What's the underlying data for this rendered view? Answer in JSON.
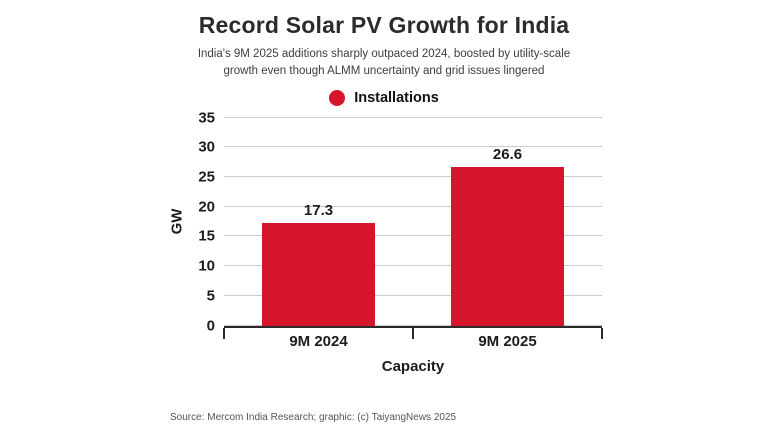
{
  "header": {
    "title": "Record Solar PV Growth for India",
    "subtitle_line1": "India's 9M 2025 additions sharply outpaced 2024, boosted by utility-scale",
    "subtitle_line2": "growth even though ALMM uncertainty and grid issues lingered"
  },
  "legend": {
    "label": "Installations",
    "color": "#d5152c"
  },
  "chart_data": {
    "type": "bar",
    "categories": [
      "9M 2024",
      "9M 2025"
    ],
    "values": [
      17.3,
      26.6
    ],
    "title": "Record Solar PV Growth for India",
    "xlabel": "Capacity",
    "ylabel": "GW",
    "ylim": [
      0,
      35
    ],
    "ytick_step": 5,
    "grid": true,
    "bar_color": "#d5152c",
    "legend": [
      "Installations"
    ],
    "legend_position": "top"
  },
  "footer": {
    "source": "Source: Mercom India Research; graphic: (c) TaiyangNews 2025"
  }
}
